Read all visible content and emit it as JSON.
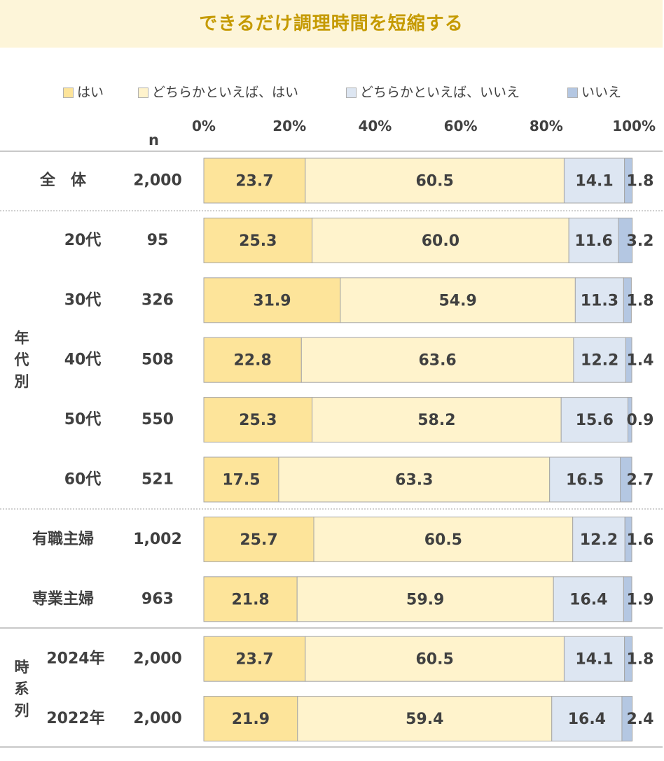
{
  "title": "できるだけ調理時間を短縮する",
  "legend": [
    "はい",
    "どちらかといえば、はい",
    "どちらかといえば、いいえ",
    "いいえ"
  ],
  "colors": {
    "title_bg": "#fdf5d9",
    "title_text": "#c59a00",
    "series": [
      "#fde49a",
      "#fff3cc",
      "#dde6f2",
      "#b4c7e2"
    ]
  },
  "n_header": "n",
  "chart_data": {
    "type": "bar",
    "orientation": "horizontal-stacked-100",
    "xlim": [
      0,
      100
    ],
    "ticks": [
      "0%",
      "20%",
      "40%",
      "60%",
      "80%",
      "100%"
    ],
    "groups": [
      {
        "label": "",
        "rows": [
          0
        ]
      },
      {
        "label": "年代別",
        "rows": [
          1,
          2,
          3,
          4,
          5
        ]
      },
      {
        "label": "",
        "rows": [
          6,
          7
        ]
      },
      {
        "label": "時系列",
        "rows": [
          8,
          9
        ]
      }
    ],
    "categories": [
      "全　体",
      "20代",
      "30代",
      "40代",
      "50代",
      "60代",
      "有職主婦",
      "専業主婦",
      "2024年",
      "2022年"
    ],
    "n": [
      "2,000",
      "95",
      "326",
      "508",
      "550",
      "521",
      "1,002",
      "963",
      "2,000",
      "2,000"
    ],
    "series": [
      {
        "name": "はい",
        "values": [
          23.7,
          25.3,
          31.9,
          22.8,
          25.3,
          17.5,
          25.7,
          21.8,
          23.7,
          21.9
        ]
      },
      {
        "name": "どちらかといえば、はい",
        "values": [
          60.5,
          60.0,
          54.9,
          63.6,
          58.2,
          63.3,
          60.5,
          59.9,
          60.5,
          59.4
        ]
      },
      {
        "name": "どちらかといえば、いいえ",
        "values": [
          14.1,
          11.6,
          11.3,
          12.2,
          15.6,
          16.5,
          12.2,
          16.4,
          14.1,
          16.4
        ]
      },
      {
        "name": "いいえ",
        "values": [
          1.8,
          3.2,
          1.8,
          1.4,
          0.9,
          2.7,
          1.6,
          1.9,
          1.8,
          2.4
        ]
      }
    ]
  }
}
